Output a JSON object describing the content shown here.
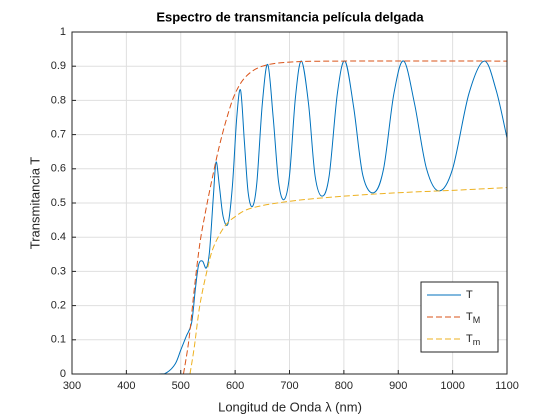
{
  "chart_data": {
    "type": "line",
    "title": "Espectro de transmitancia película delgada",
    "xlabel": "Longitud de Onda λ (nm)",
    "ylabel": "Transmitancia T",
    "xlim": [
      300,
      1100
    ],
    "ylim": [
      0,
      1
    ],
    "xticks": [
      300,
      400,
      500,
      600,
      700,
      800,
      900,
      1000,
      1100
    ],
    "yticks": [
      0,
      0.1,
      0.2,
      0.3,
      0.4,
      0.5,
      0.6,
      0.7,
      0.8,
      0.9,
      1
    ],
    "grid": true,
    "legend": "lower right",
    "series": [
      {
        "name": "T",
        "color": "#0072BD",
        "dash": "solid",
        "x": [
          300,
          400,
          460,
          475,
          490,
          500,
          510,
          520,
          527,
          533,
          540,
          547,
          553,
          560,
          565,
          571,
          578,
          587,
          595,
          603,
          610,
          617,
          624,
          632,
          640,
          650,
          660,
          670,
          680,
          690,
          700,
          711,
          722,
          735,
          747,
          760,
          773,
          788,
          802,
          818,
          835,
          855,
          873,
          892,
          910,
          930,
          952,
          975,
          1000,
          1030,
          1058,
          1080,
          1100
        ],
        "values": [
          0,
          0,
          0,
          0.005,
          0.03,
          0.07,
          0.11,
          0.15,
          0.25,
          0.32,
          0.33,
          0.31,
          0.36,
          0.52,
          0.62,
          0.55,
          0.46,
          0.44,
          0.55,
          0.75,
          0.83,
          0.68,
          0.53,
          0.49,
          0.56,
          0.79,
          0.905,
          0.75,
          0.56,
          0.51,
          0.58,
          0.81,
          0.915,
          0.79,
          0.58,
          0.52,
          0.58,
          0.82,
          0.915,
          0.78,
          0.58,
          0.53,
          0.6,
          0.82,
          0.915,
          0.79,
          0.6,
          0.535,
          0.6,
          0.82,
          0.915,
          0.83,
          0.69
        ]
      },
      {
        "name": "T_M",
        "color": "#D95319",
        "dash": "dashed",
        "x": [
          505,
          515,
          525,
          535,
          545,
          555,
          570,
          585,
          600,
          620,
          650,
          700,
          800,
          1100
        ],
        "values": [
          0,
          0.1,
          0.25,
          0.38,
          0.47,
          0.55,
          0.66,
          0.75,
          0.82,
          0.87,
          0.9,
          0.912,
          0.915,
          0.915
        ]
      },
      {
        "name": "T_m",
        "color": "#EDB120",
        "dash": "dashed",
        "x": [
          517,
          525,
          535,
          548,
          560,
          580,
          600,
          630,
          700,
          800,
          900,
          1000,
          1100
        ],
        "values": [
          0,
          0.08,
          0.2,
          0.3,
          0.37,
          0.43,
          0.46,
          0.485,
          0.505,
          0.52,
          0.53,
          0.537,
          0.545
        ]
      }
    ]
  }
}
